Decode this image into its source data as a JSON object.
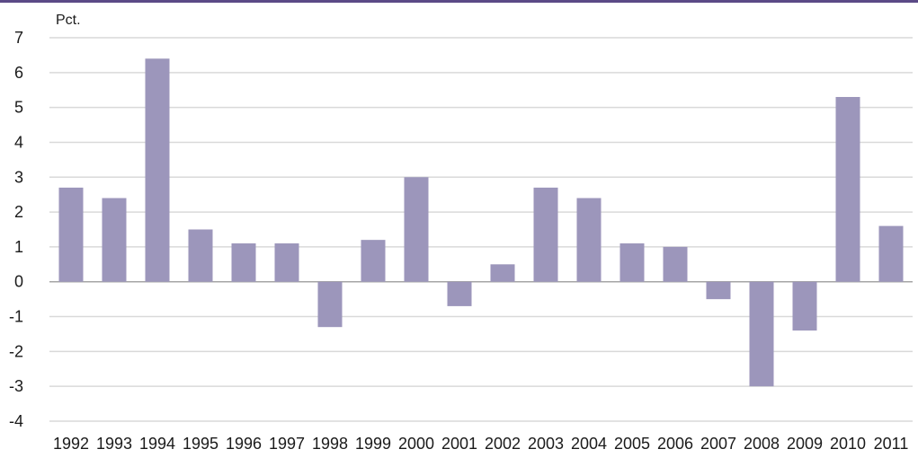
{
  "chart_data": {
    "type": "bar",
    "ylabel": "Pct.",
    "categories": [
      "1992",
      "1993",
      "1994",
      "1995",
      "1996",
      "1997",
      "1998",
      "1999",
      "2000",
      "2001",
      "2002",
      "2003",
      "2004",
      "2005",
      "2006",
      "2007",
      "2008",
      "2009",
      "2010",
      "2011"
    ],
    "series": [
      {
        "values": [
          2.7,
          2.4,
          6.4,
          1.5,
          1.1,
          1.1,
          -1.3,
          1.2,
          3.0,
          -0.7,
          0.5,
          2.7,
          2.4,
          1.1,
          1.0,
          -0.5,
          -3.0,
          -1.4,
          5.3,
          1.6
        ]
      }
    ],
    "ylim": [
      -4,
      7
    ],
    "yticks": [
      "7",
      "6",
      "5",
      "4",
      "3",
      "2",
      "1",
      "0",
      "-1",
      "-2",
      "-3",
      "-4"
    ],
    "grid": true,
    "legend": "none"
  },
  "colors": {
    "bar": "#9c96bb",
    "grid": "#d9d9d9",
    "axis": "#a6a6a6",
    "top_rule": "#5b4a86"
  }
}
